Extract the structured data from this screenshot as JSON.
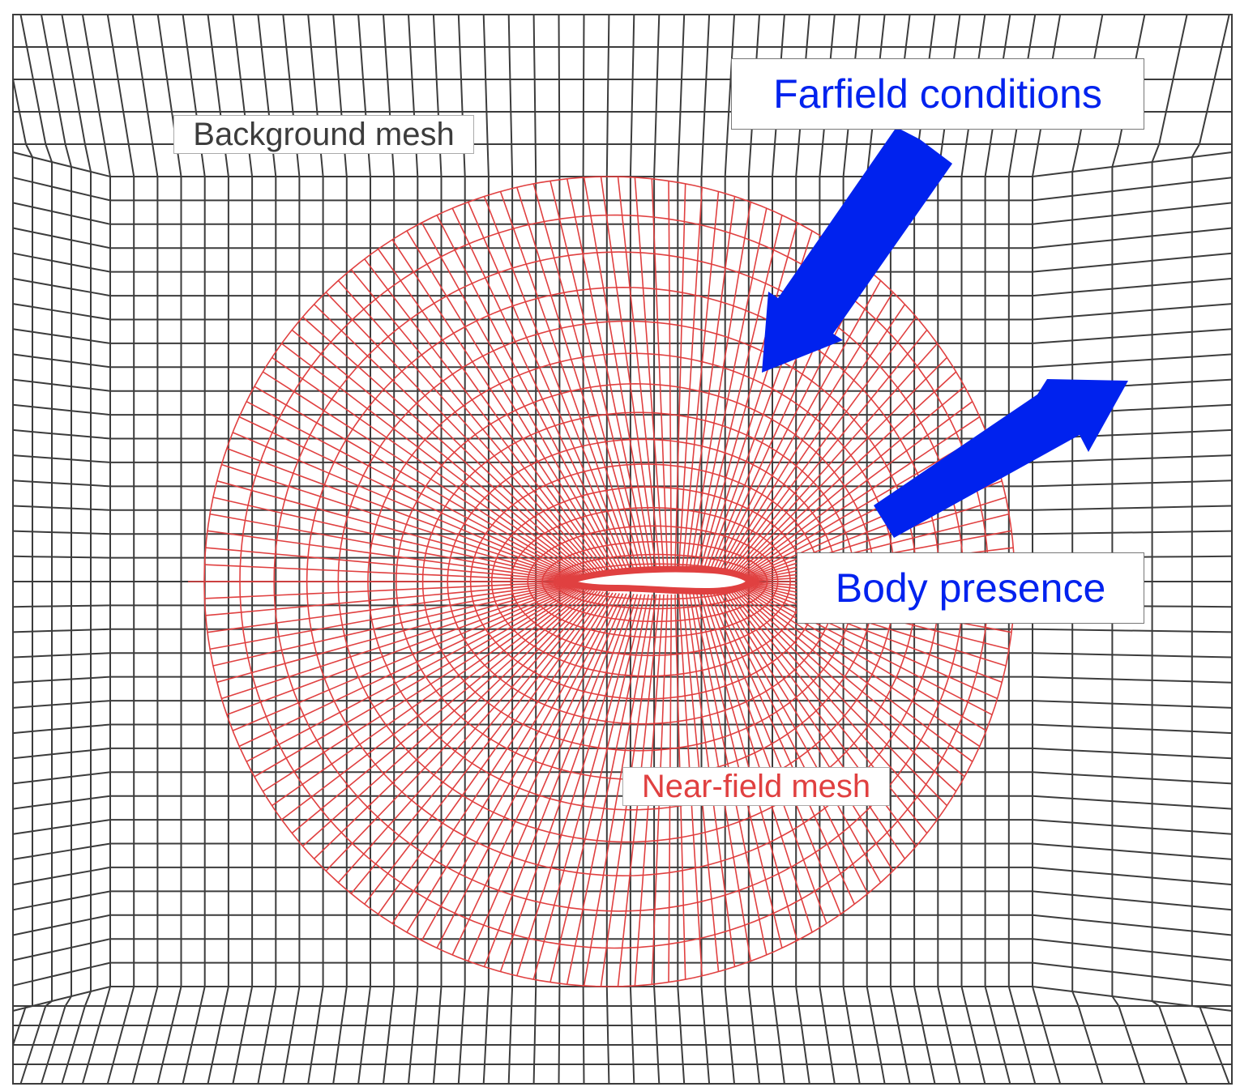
{
  "labels": {
    "farfield": "Farfield conditions",
    "body": "Body presence",
    "background": "Background mesh",
    "nearfield": "Near-field mesh"
  },
  "colors": {
    "background_mesh": "#3c3c3c",
    "nearfield_mesh": "#e04040",
    "arrow": "#0022ee",
    "annotation_text": "#0022ee",
    "airfoil": "#e04040"
  },
  "icons": {
    "farfield_arrow": "arrow-inward-icon",
    "body_arrow": "arrow-outward-icon"
  }
}
